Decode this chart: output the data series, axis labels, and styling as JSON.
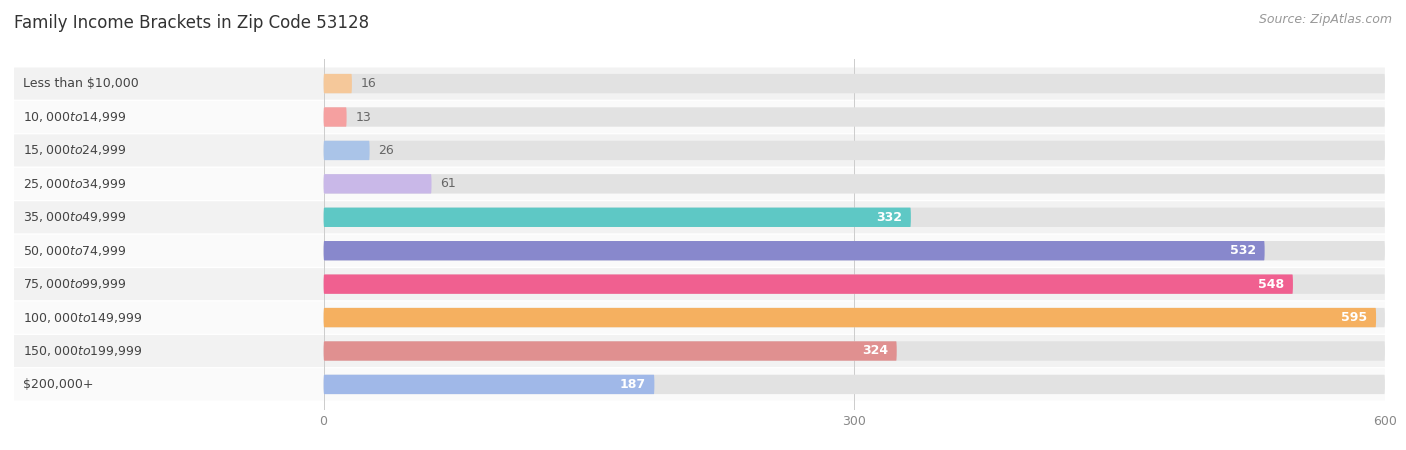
{
  "title": "Family Income Brackets in Zip Code 53128",
  "source": "Source: ZipAtlas.com",
  "categories": [
    "Less than $10,000",
    "$10,000 to $14,999",
    "$15,000 to $24,999",
    "$25,000 to $34,999",
    "$35,000 to $49,999",
    "$50,000 to $74,999",
    "$75,000 to $99,999",
    "$100,000 to $149,999",
    "$150,000 to $199,999",
    "$200,000+"
  ],
  "values": [
    16,
    13,
    26,
    61,
    332,
    532,
    548,
    595,
    324,
    187
  ],
  "bar_colors": [
    "#f5c89a",
    "#f5a0a0",
    "#aac4e8",
    "#c9b8e8",
    "#5ec8c5",
    "#8888cc",
    "#f06090",
    "#f5b060",
    "#e09090",
    "#a0b8e8"
  ],
  "xlim_max": 600,
  "xticks": [
    0,
    300,
    600
  ],
  "title_fontsize": 12,
  "source_fontsize": 9,
  "label_fontsize": 9,
  "value_fontsize": 9,
  "bar_height": 0.58,
  "row_colors": [
    "#f2f2f2",
    "#fafafa"
  ]
}
